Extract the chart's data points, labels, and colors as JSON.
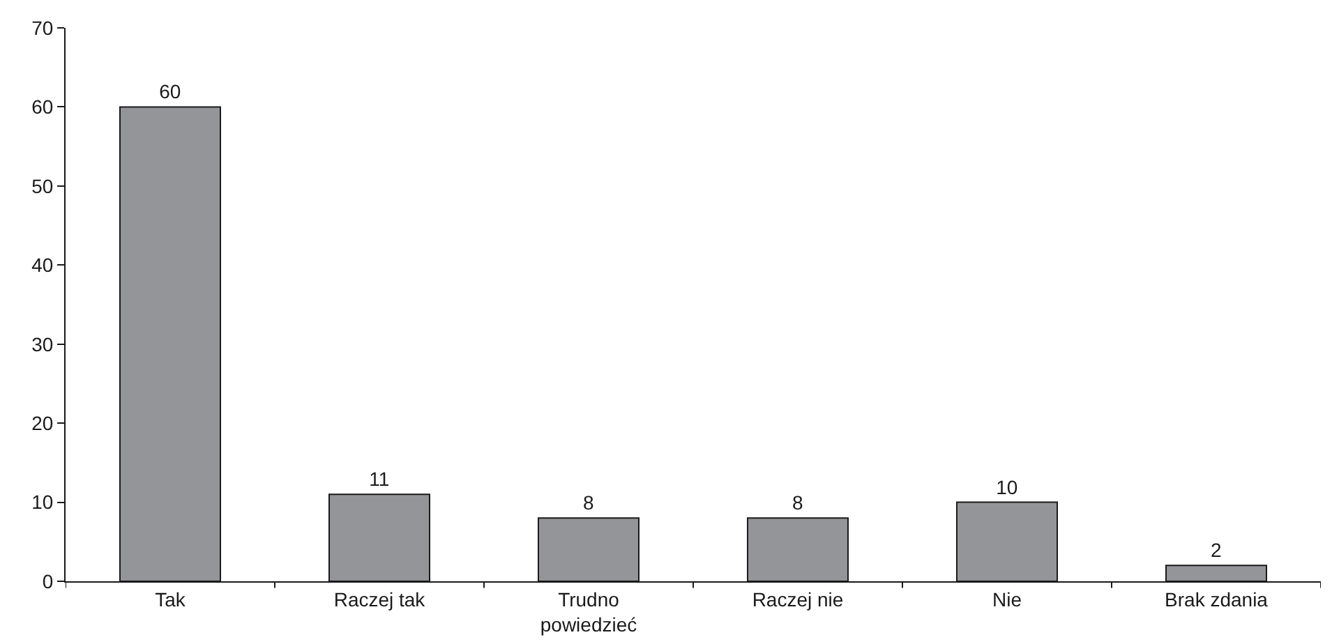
{
  "chart_data": {
    "type": "bar",
    "categories": [
      "Tak",
      "Raczej tak",
      "Trudno powiedzieć",
      "Raczej nie",
      "Nie",
      "Brak zdania"
    ],
    "values": [
      60,
      11,
      8,
      8,
      10,
      2
    ],
    "color": "#939598",
    "ylim": [
      0,
      70
    ],
    "yticks": [
      0,
      10,
      20,
      30,
      40,
      50,
      60,
      70
    ],
    "data_labels": true
  }
}
